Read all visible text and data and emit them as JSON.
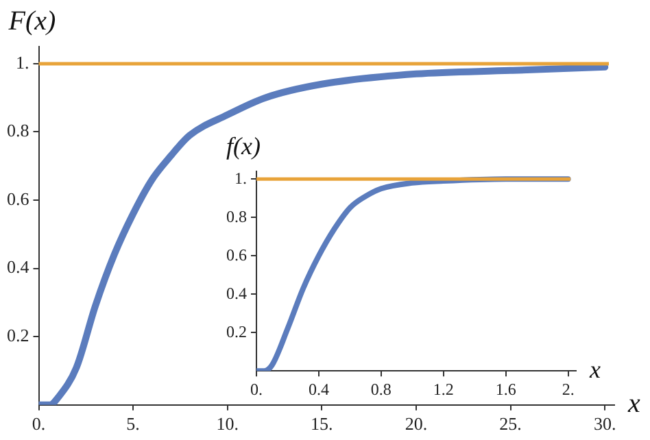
{
  "chart_data": [
    {
      "type": "line",
      "xlabel": "x",
      "ylabel": "F(x)",
      "series": [
        {
          "color": "#5b7cbd",
          "x": [
            0,
            0.6,
            1,
            2,
            3,
            4,
            5,
            6,
            7,
            8,
            10,
            12,
            15,
            20,
            25,
            30
          ],
          "values": [
            0,
            0,
            0.02,
            0.11,
            0.29,
            0.44,
            0.56,
            0.66,
            0.73,
            0.79,
            0.85,
            0.9,
            0.94,
            0.97,
            0.98,
            0.99
          ]
        }
      ],
      "xlim": [
        0,
        30.5
      ],
      "ylim": [
        0,
        1.05
      ],
      "xticks": [
        {
          "value": 0,
          "label": "0."
        },
        {
          "value": 5,
          "label": "5."
        },
        {
          "value": 10,
          "label": "10."
        },
        {
          "value": 15,
          "label": "15."
        },
        {
          "value": 20,
          "label": "20."
        },
        {
          "value": 25,
          "label": "25."
        },
        {
          "value": 30,
          "label": "30."
        }
      ],
      "yticks": [
        0.2,
        0.4,
        0.6,
        0.8,
        {
          "value": 1,
          "label": "1."
        }
      ],
      "ref_lines": [
        {
          "axis": "y",
          "value": 1,
          "color": "#e8a33a"
        }
      ],
      "grid": false,
      "legend": false,
      "marker": "none",
      "line_style": "solid"
    },
    {
      "type": "line",
      "xlabel": "x",
      "ylabel": "f(x)",
      "series": [
        {
          "color": "#5b7cbd",
          "x": [
            0,
            0.05,
            0.1,
            0.2,
            0.3,
            0.4,
            0.5,
            0.6,
            0.7,
            0.8,
            1.0,
            1.2,
            1.6,
            2.0
          ],
          "values": [
            0,
            0,
            0.03,
            0.22,
            0.43,
            0.6,
            0.74,
            0.85,
            0.91,
            0.95,
            0.98,
            0.99,
            1,
            1
          ]
        }
      ],
      "xlim": [
        0,
        2.05
      ],
      "ylim": [
        0,
        1.04
      ],
      "xticks": [
        {
          "value": 0,
          "label": "0."
        },
        0.4,
        0.8,
        1.2,
        1.6,
        {
          "value": 2,
          "label": "2."
        }
      ],
      "yticks": [
        0.2,
        0.4,
        0.6,
        0.8,
        {
          "value": 1,
          "label": "1."
        }
      ],
      "ref_lines": [
        {
          "axis": "y",
          "value": 1,
          "color": "#e8a33a"
        }
      ],
      "grid": false,
      "legend": false,
      "marker": "none",
      "line_style": "solid"
    }
  ]
}
